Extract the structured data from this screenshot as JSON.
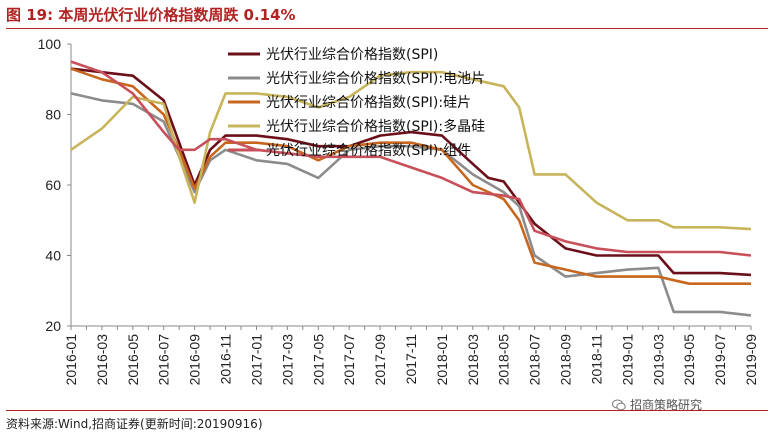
{
  "figure": {
    "title": "图 19:  本周光伏行业价格指数周跌 0.14%",
    "source": "资料来源:Wind,招商证券(更新时间:20190916)",
    "watermark": "招商策略研究",
    "watermark_icon": "wechat-icon",
    "accent_color": "#b22222"
  },
  "chart_data": {
    "type": "line",
    "title": "",
    "xlabel": "",
    "ylabel": "",
    "ylim": [
      20,
      100
    ],
    "yticks": [
      20,
      40,
      60,
      80,
      100
    ],
    "xlim": [
      "2016-01",
      "2019-09"
    ],
    "xticks": [
      "2016-01",
      "2016-03",
      "2016-05",
      "2016-07",
      "2016-09",
      "2016-11",
      "2017-01",
      "2017-03",
      "2017-05",
      "2017-07",
      "2017-09",
      "2017-11",
      "2018-01",
      "2018-03",
      "2018-05",
      "2018-07",
      "2018-09",
      "2018-11",
      "2019-01",
      "2019-03",
      "2019-05",
      "2019-07",
      "2019-09"
    ],
    "grid": false,
    "legend_position": "top-center",
    "series": [
      {
        "name": "光伏行业综合价格指数(SPI)",
        "color": "#6b0f1a",
        "points": [
          [
            "2016-01",
            93
          ],
          [
            "2016-03",
            92
          ],
          [
            "2016-05",
            91
          ],
          [
            "2016-07",
            84
          ],
          [
            "2016-08",
            72
          ],
          [
            "2016-09",
            60
          ],
          [
            "2016-10",
            70
          ],
          [
            "2016-11",
            74
          ],
          [
            "2017-01",
            74
          ],
          [
            "2017-03",
            73
          ],
          [
            "2017-05",
            71
          ],
          [
            "2017-07",
            71
          ],
          [
            "2017-09",
            74
          ],
          [
            "2017-11",
            75
          ],
          [
            "2018-01",
            74
          ],
          [
            "2018-03",
            66
          ],
          [
            "2018-04",
            62
          ],
          [
            "2018-05",
            61
          ],
          [
            "2018-06",
            55
          ],
          [
            "2018-07",
            49
          ],
          [
            "2018-09",
            42
          ],
          [
            "2018-11",
            40
          ],
          [
            "2019-01",
            40
          ],
          [
            "2019-03",
            40
          ],
          [
            "2019-04",
            35
          ],
          [
            "2019-05",
            35
          ],
          [
            "2019-07",
            35
          ],
          [
            "2019-09",
            34.5
          ]
        ]
      },
      {
        "name": "光伏行业综合价格指数(SPI):电池片",
        "color": "#8c8c8c",
        "points": [
          [
            "2016-01",
            86
          ],
          [
            "2016-03",
            84
          ],
          [
            "2016-05",
            83
          ],
          [
            "2016-07",
            78
          ],
          [
            "2016-08",
            68
          ],
          [
            "2016-09",
            58
          ],
          [
            "2016-10",
            67
          ],
          [
            "2016-11",
            70
          ],
          [
            "2017-01",
            67
          ],
          [
            "2017-03",
            66
          ],
          [
            "2017-05",
            62
          ],
          [
            "2017-07",
            70
          ],
          [
            "2017-09",
            71
          ],
          [
            "2017-11",
            71
          ],
          [
            "2018-01",
            70
          ],
          [
            "2018-03",
            63
          ],
          [
            "2018-05",
            58
          ],
          [
            "2018-06",
            54
          ],
          [
            "2018-07",
            40
          ],
          [
            "2018-09",
            34
          ],
          [
            "2018-11",
            35
          ],
          [
            "2019-01",
            36
          ],
          [
            "2019-03",
            36.5
          ],
          [
            "2019-04",
            24
          ],
          [
            "2019-05",
            24
          ],
          [
            "2019-07",
            24
          ],
          [
            "2019-09",
            23
          ]
        ]
      },
      {
        "name": "光伏行业综合价格指数(SPI):硅片",
        "color": "#c8661e",
        "points": [
          [
            "2016-01",
            93
          ],
          [
            "2016-03",
            90
          ],
          [
            "2016-05",
            88
          ],
          [
            "2016-07",
            80
          ],
          [
            "2016-08",
            70
          ],
          [
            "2016-09",
            59
          ],
          [
            "2016-10",
            68
          ],
          [
            "2016-11",
            72
          ],
          [
            "2017-01",
            72
          ],
          [
            "2017-03",
            71
          ],
          [
            "2017-05",
            67
          ],
          [
            "2017-07",
            71
          ],
          [
            "2017-09",
            72
          ],
          [
            "2017-11",
            72
          ],
          [
            "2018-01",
            70
          ],
          [
            "2018-03",
            60
          ],
          [
            "2018-05",
            56
          ],
          [
            "2018-06",
            50
          ],
          [
            "2018-07",
            38
          ],
          [
            "2018-09",
            36
          ],
          [
            "2018-11",
            34
          ],
          [
            "2019-01",
            34
          ],
          [
            "2019-03",
            34
          ],
          [
            "2019-04",
            33
          ],
          [
            "2019-05",
            32
          ],
          [
            "2019-07",
            32
          ],
          [
            "2019-09",
            32
          ]
        ]
      },
      {
        "name": "光伏行业综合价格指数(SPI):多晶硅",
        "color": "#c8b45a",
        "points": [
          [
            "2016-01",
            70
          ],
          [
            "2016-03",
            76
          ],
          [
            "2016-05",
            85
          ],
          [
            "2016-07",
            83
          ],
          [
            "2016-08",
            68
          ],
          [
            "2016-09",
            55
          ],
          [
            "2016-10",
            75
          ],
          [
            "2016-11",
            86
          ],
          [
            "2017-01",
            86
          ],
          [
            "2017-03",
            85
          ],
          [
            "2017-05",
            82
          ],
          [
            "2017-07",
            85
          ],
          [
            "2017-09",
            91
          ],
          [
            "2017-11",
            92
          ],
          [
            "2018-01",
            92
          ],
          [
            "2018-03",
            90
          ],
          [
            "2018-05",
            88
          ],
          [
            "2018-06",
            82
          ],
          [
            "2018-07",
            63
          ],
          [
            "2018-09",
            63
          ],
          [
            "2018-11",
            55
          ],
          [
            "2019-01",
            50
          ],
          [
            "2019-03",
            50
          ],
          [
            "2019-04",
            48
          ],
          [
            "2019-05",
            48
          ],
          [
            "2019-07",
            48
          ],
          [
            "2019-09",
            47.5
          ]
        ]
      },
      {
        "name": "光伏行业综合价格指数(SPI):组件",
        "color": "#c8505a",
        "points": [
          [
            "2016-01",
            95
          ],
          [
            "2016-03",
            92
          ],
          [
            "2016-05",
            86
          ],
          [
            "2016-07",
            75
          ],
          [
            "2016-08",
            70
          ],
          [
            "2016-09",
            70
          ],
          [
            "2016-10",
            73
          ],
          [
            "2016-11",
            73
          ],
          [
            "2017-01",
            70
          ],
          [
            "2017-03",
            69
          ],
          [
            "2017-05",
            68
          ],
          [
            "2017-07",
            68
          ],
          [
            "2017-09",
            68
          ],
          [
            "2017-11",
            65
          ],
          [
            "2018-01",
            62
          ],
          [
            "2018-03",
            58
          ],
          [
            "2018-05",
            57
          ],
          [
            "2018-06",
            56
          ],
          [
            "2018-07",
            47
          ],
          [
            "2018-09",
            44
          ],
          [
            "2018-11",
            42
          ],
          [
            "2019-01",
            41
          ],
          [
            "2019-03",
            41
          ],
          [
            "2019-04",
            41
          ],
          [
            "2019-05",
            41
          ],
          [
            "2019-07",
            41
          ],
          [
            "2019-09",
            40
          ]
        ]
      }
    ]
  }
}
